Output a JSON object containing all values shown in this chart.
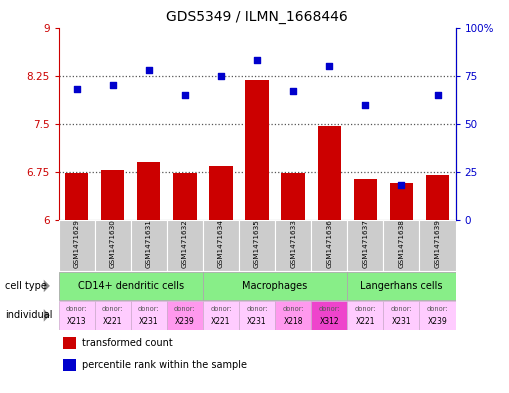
{
  "title": "GDS5349 / ILMN_1668446",
  "samples": [
    "GSM1471629",
    "GSM1471630",
    "GSM1471631",
    "GSM1471632",
    "GSM1471634",
    "GSM1471635",
    "GSM1471633",
    "GSM1471636",
    "GSM1471637",
    "GSM1471638",
    "GSM1471639"
  ],
  "transformed_count": [
    6.74,
    6.78,
    6.9,
    6.73,
    6.85,
    8.19,
    6.73,
    7.46,
    6.64,
    6.58,
    6.7
  ],
  "percentile_rank": [
    68,
    70,
    78,
    65,
    75,
    83,
    67,
    80,
    60,
    18,
    65
  ],
  "ylim_left": [
    6.0,
    9.0
  ],
  "ylim_right": [
    0,
    100
  ],
  "yticks_left": [
    6.0,
    6.75,
    7.5,
    8.25,
    9.0
  ],
  "yticks_right": [
    0,
    25,
    50,
    75,
    100
  ],
  "ytick_labels_left": [
    "6",
    "6.75",
    "7.5",
    "8.25",
    "9"
  ],
  "ytick_labels_right": [
    "0",
    "25",
    "50",
    "75",
    "100%"
  ],
  "bar_color": "#cc0000",
  "scatter_color": "#0000cc",
  "cell_groups": [
    {
      "label": "CD14+ dendritic cells",
      "indices": [
        0,
        1,
        2,
        3
      ],
      "color": "#88ee88"
    },
    {
      "label": "Macrophages",
      "indices": [
        4,
        5,
        6,
        7
      ],
      "color": "#88ee88"
    },
    {
      "label": "Langerhans cells",
      "indices": [
        8,
        9,
        10
      ],
      "color": "#88ee88"
    }
  ],
  "donors": [
    "X213",
    "X221",
    "X231",
    "X239",
    "X221",
    "X231",
    "X218",
    "X312",
    "X221",
    "X231",
    "X239"
  ],
  "donor_bg": [
    "#ffccff",
    "#ffccff",
    "#ffccff",
    "#ff99ee",
    "#ffccff",
    "#ffccff",
    "#ff99ee",
    "#ee44cc",
    "#ffccff",
    "#ffccff",
    "#ffccff"
  ],
  "grid_dotted_color": "#555555",
  "left_axis_color": "#cc0000",
  "right_axis_color": "#0000cc",
  "sample_bg_color": "#cccccc",
  "border_color": "#888888"
}
